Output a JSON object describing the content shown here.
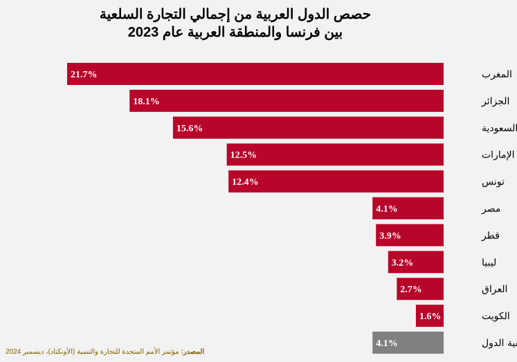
{
  "chart_data": {
    "type": "bar",
    "orientation": "horizontal",
    "title": [
      "حصص الدول العربية من إجمالي التجارة السلعية",
      "بين فرنسا والمنطقة العربية عام 2023"
    ],
    "categories": [
      "المغرب",
      "الجزائر",
      "السعودية",
      "الإمارات",
      "تونس",
      "مصر",
      "قطر",
      "ليبيا",
      "العراق",
      "الكويت",
      "بقية الدول"
    ],
    "values": [
      21.7,
      18.1,
      15.6,
      12.5,
      12.4,
      4.1,
      3.9,
      3.2,
      2.7,
      1.6,
      4.1
    ],
    "data_labels": [
      "21.7%",
      "18.1%",
      "15.6%",
      "12.5%",
      "12.4%",
      "4.1%",
      "3.9%",
      "3.2%",
      "2.7%",
      "1.6%",
      "4.1%"
    ],
    "unit": "%",
    "colors": {
      "bar": "#b8062a",
      "other": "#808080",
      "background": "#f2f2f2"
    },
    "grid": false,
    "legend": "none"
  },
  "source": {
    "label": "المصدر:",
    "text": " مؤتمر الأمم المتحدة للتجارة والتنمية (الأونكتاد)، ديسمبر 2024"
  }
}
